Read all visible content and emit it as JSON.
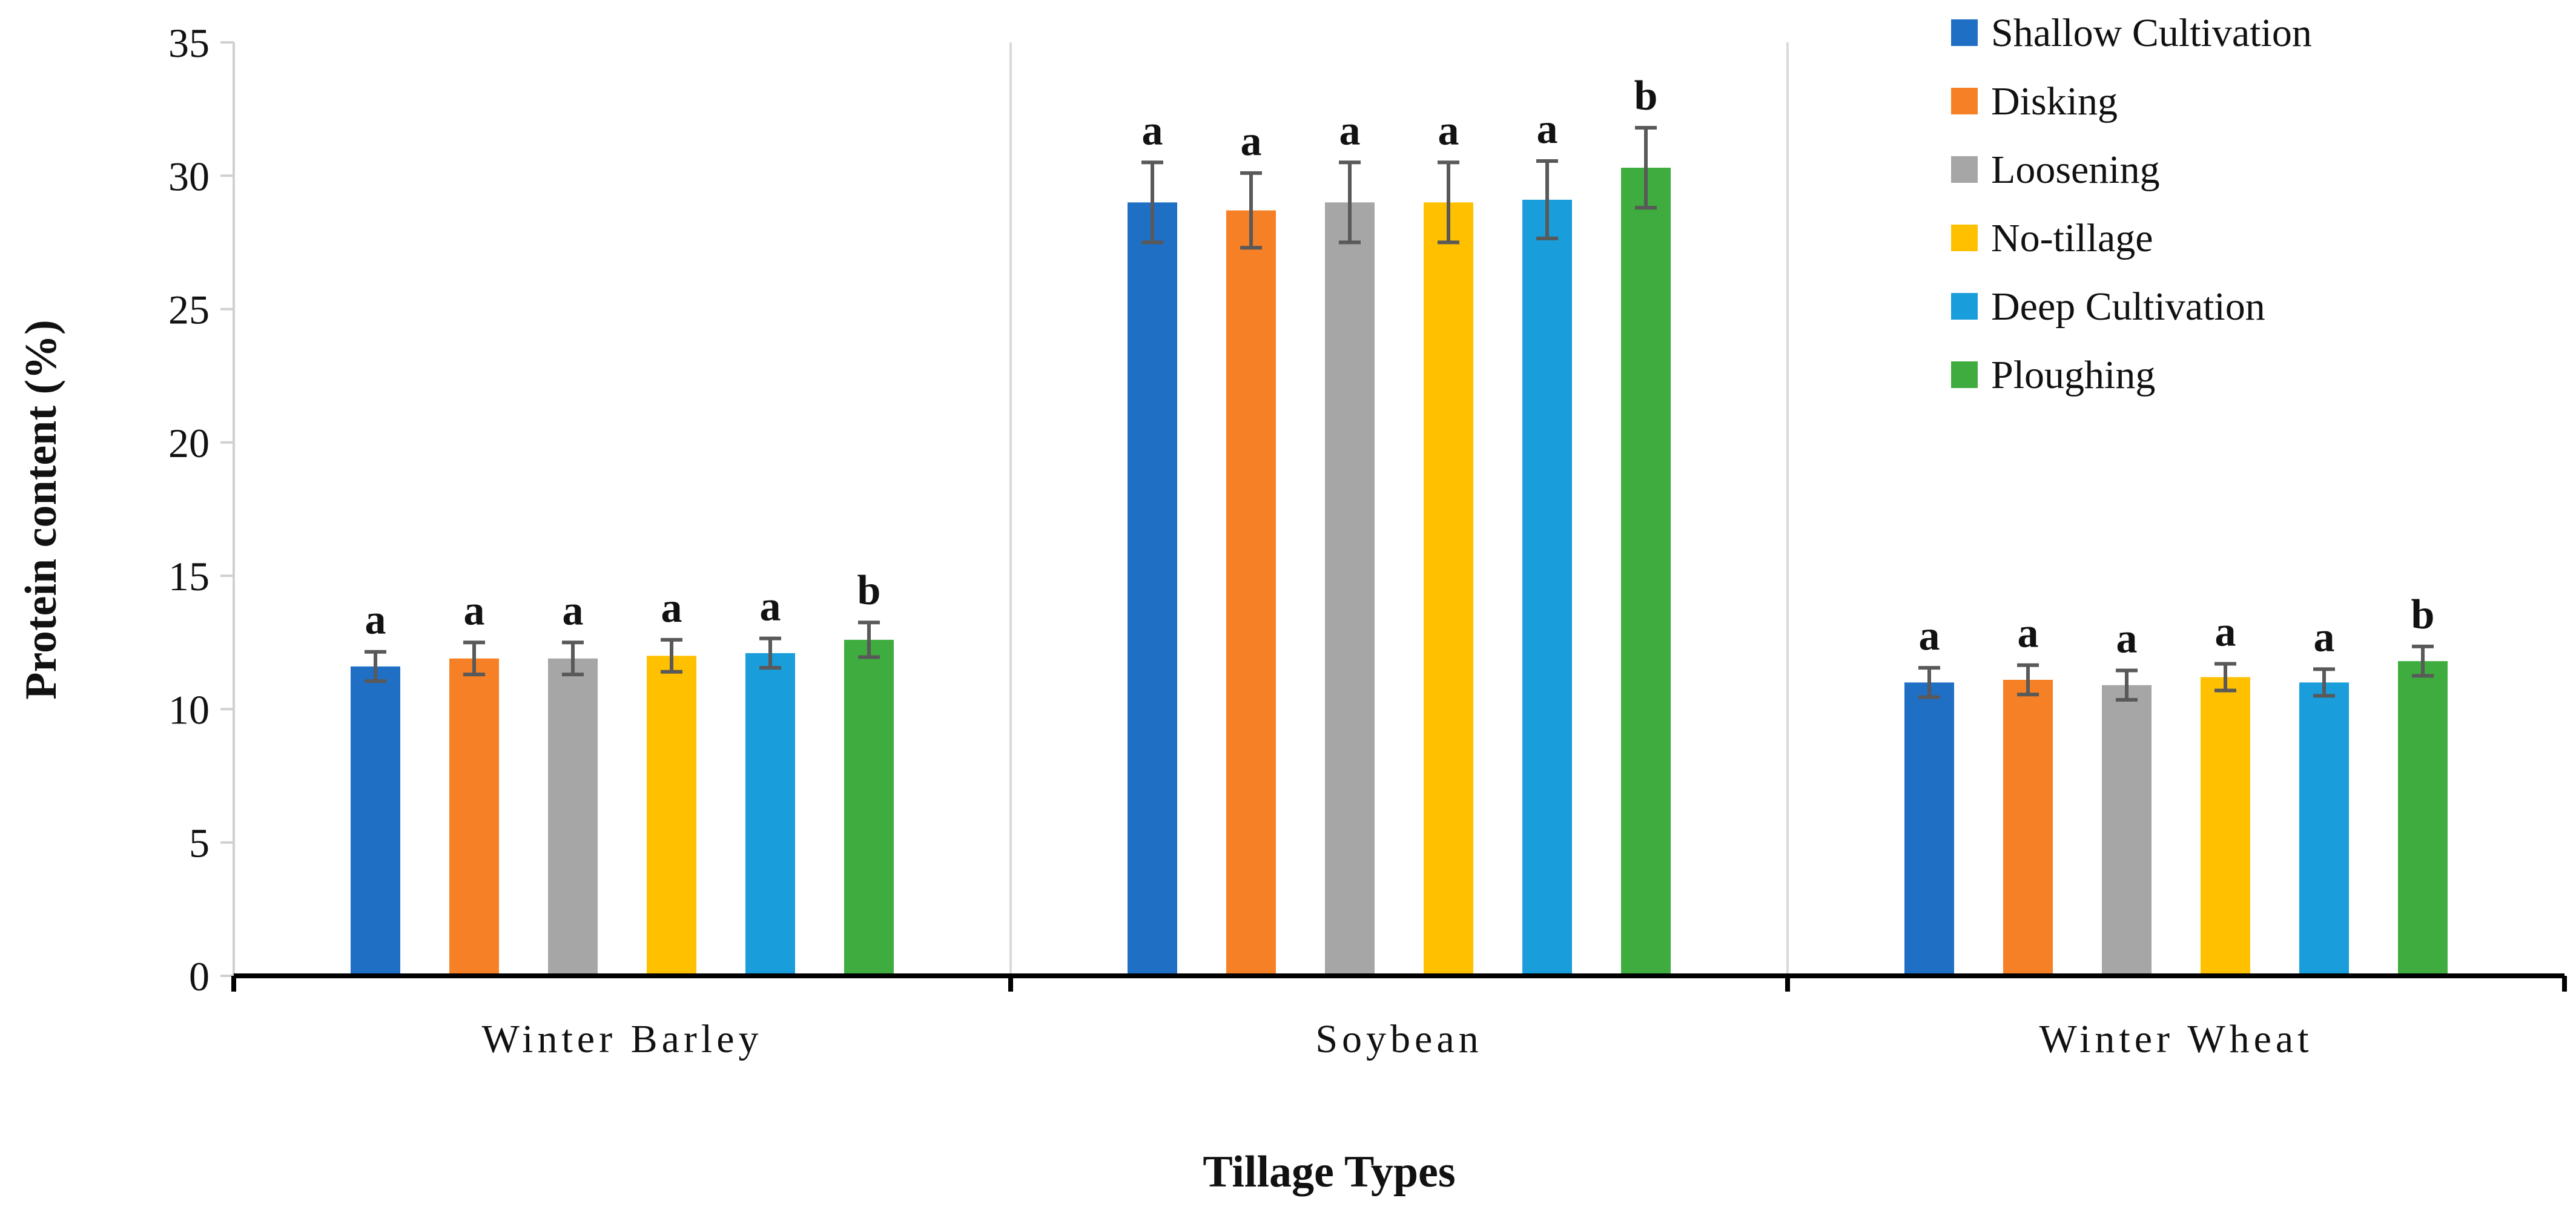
{
  "chart_data": {
    "type": "bar",
    "title": "",
    "xlabel": "Tillage Types",
    "ylabel": "Protein content (%)",
    "ylim": [
      0,
      35
    ],
    "yticks": [
      0,
      5,
      10,
      15,
      20,
      25,
      30,
      35
    ],
    "categories": [
      "Winter Barley",
      "Soybean",
      "Winter Wheat"
    ],
    "legend_position": "top-right",
    "series": [
      {
        "name": "Shallow Cultivation",
        "color": "#1F6FC5",
        "values": [
          11.6,
          29.0,
          11.0
        ],
        "errors": [
          0.55,
          1.5,
          0.55
        ],
        "labels": [
          "a",
          "a",
          "a"
        ]
      },
      {
        "name": "Disking",
        "color": "#F58025",
        "values": [
          11.9,
          28.7,
          11.1
        ],
        "errors": [
          0.6,
          1.4,
          0.55
        ],
        "labels": [
          "a",
          "a",
          "a"
        ]
      },
      {
        "name": "Loosening",
        "color": "#A6A6A6",
        "values": [
          11.9,
          29.0,
          10.9
        ],
        "errors": [
          0.6,
          1.5,
          0.55
        ],
        "labels": [
          "a",
          "a",
          "a"
        ]
      },
      {
        "name": "No-tillage",
        "color": "#FFC000",
        "values": [
          12.0,
          29.0,
          11.2
        ],
        "errors": [
          0.6,
          1.5,
          0.5
        ],
        "labels": [
          "a",
          "a",
          "a"
        ]
      },
      {
        "name": "Deep Cultivation",
        "color": "#199DDB",
        "values": [
          12.1,
          29.1,
          11.0
        ],
        "errors": [
          0.55,
          1.45,
          0.5
        ],
        "labels": [
          "a",
          "a",
          "a"
        ]
      },
      {
        "name": "Ploughing",
        "color": "#3EAC3E",
        "values": [
          12.6,
          30.3,
          11.8
        ],
        "errors": [
          0.65,
          1.5,
          0.55
        ],
        "labels": [
          "b",
          "b",
          "b"
        ]
      }
    ]
  }
}
